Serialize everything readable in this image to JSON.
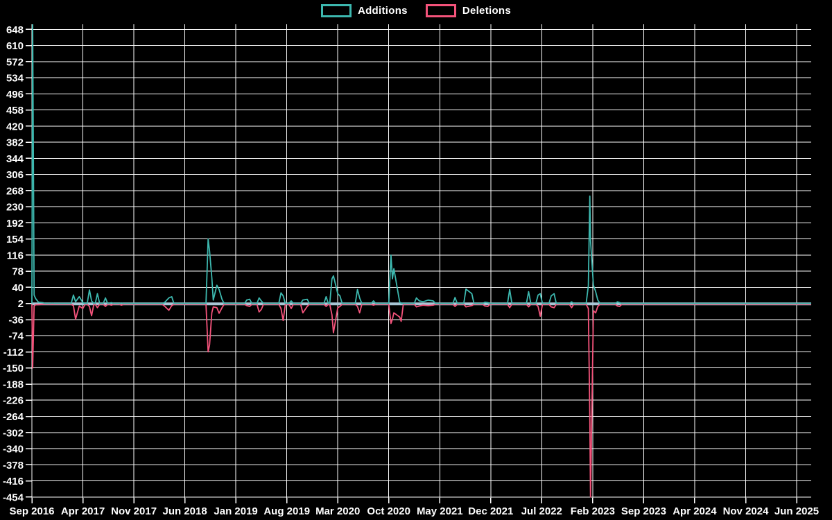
{
  "legend": {
    "items": [
      {
        "label": "Additions",
        "color": "#3db8af"
      },
      {
        "label": "Deletions",
        "color": "#f4537b"
      }
    ]
  },
  "chart_data": {
    "type": "line",
    "title": "",
    "xlabel": "",
    "ylabel": "",
    "background_color": "#000000",
    "grid_color": "#ffffff",
    "text_color": "#ffffff",
    "baseline_color": "#a8c6d5",
    "legend_position": "top-center",
    "grid": true,
    "series": [
      {
        "name": "Additions",
        "color": "#3db8af",
        "baseline": 2
      },
      {
        "name": "Deletions",
        "color": "#f4537b",
        "baseline": 0
      }
    ],
    "y_axis": {
      "ticks": [
        648,
        610,
        572,
        534,
        496,
        458,
        420,
        382,
        344,
        306,
        268,
        230,
        192,
        154,
        116,
        78,
        40,
        2,
        -36,
        -74,
        -112,
        -150,
        -188,
        -226,
        -264,
        -302,
        -340,
        -378,
        -416,
        -454
      ],
      "tick_step": 38,
      "max": 660,
      "min": -456
    },
    "x_axis": {
      "labels": [
        "Sep 2016",
        "Apr 2017",
        "Nov 2017",
        "Jun 2018",
        "Jan 2019",
        "Aug 2019",
        "Mar 2020",
        "Oct 2020",
        "May 2021",
        "Dec 2021",
        "Jul 2022",
        "Feb 2023",
        "Sep 2023",
        "Apr 2024",
        "Nov 2024",
        "Jun 2025"
      ],
      "months_per_label": 7,
      "total_months": 107
    },
    "points_note": "each point = [months since Sep 2016, additions, deletions]; series rest at baseline between points",
    "points": [
      [
        0.1,
        660,
        -150
      ],
      [
        0.3,
        22,
        -4
      ],
      [
        0.5,
        14,
        -1
      ],
      [
        0.9,
        5,
        -1
      ],
      [
        1.5,
        4,
        0
      ],
      [
        2.8,
        3,
        0
      ],
      [
        5.7,
        22,
        -3
      ],
      [
        6.0,
        6,
        -35
      ],
      [
        6.5,
        18,
        -4
      ],
      [
        7.0,
        4,
        -10
      ],
      [
        7.9,
        34,
        -5
      ],
      [
        8.2,
        8,
        -27
      ],
      [
        9.0,
        25,
        -8
      ],
      [
        10.1,
        15,
        -5
      ],
      [
        10.9,
        4,
        -2
      ],
      [
        12.3,
        3,
        -2
      ],
      [
        18.2,
        4,
        -4
      ],
      [
        18.8,
        15,
        -14
      ],
      [
        19.2,
        18,
        -3
      ],
      [
        24.2,
        154,
        -112
      ],
      [
        24.4,
        125,
        -95
      ],
      [
        24.7,
        63,
        -20
      ],
      [
        24.9,
        10,
        -6
      ],
      [
        25.4,
        45,
        -8
      ],
      [
        25.7,
        35,
        -21
      ],
      [
        26.1,
        12,
        -8
      ],
      [
        29.5,
        10,
        -3
      ],
      [
        29.9,
        12,
        -5
      ],
      [
        31.2,
        15,
        -18
      ],
      [
        31.5,
        8,
        -12
      ],
      [
        34.2,
        27,
        -10
      ],
      [
        34.5,
        20,
        -38
      ],
      [
        35.6,
        8,
        -10
      ],
      [
        37.2,
        10,
        -20
      ],
      [
        37.8,
        12,
        -5
      ],
      [
        40.4,
        18,
        -5
      ],
      [
        41.2,
        60,
        -25
      ],
      [
        41.4,
        67,
        -67
      ],
      [
        42.0,
        25,
        -8
      ],
      [
        42.3,
        20,
        -5
      ],
      [
        44.7,
        35,
        -5
      ],
      [
        45.0,
        15,
        -20
      ],
      [
        46.9,
        8,
        -2
      ],
      [
        49.3,
        116,
        -45
      ],
      [
        49.5,
        60,
        -35
      ],
      [
        49.7,
        84,
        -20
      ],
      [
        50.5,
        5,
        -30
      ],
      [
        50.7,
        3,
        -40
      ],
      [
        52.8,
        15,
        -6
      ],
      [
        53.2,
        8,
        -4
      ],
      [
        53.7,
        6,
        -2
      ],
      [
        54.4,
        10,
        -3
      ],
      [
        55.1,
        8,
        -2
      ],
      [
        58.1,
        16,
        -5
      ],
      [
        59.6,
        36,
        -6
      ],
      [
        60.4,
        25,
        -3
      ],
      [
        62.2,
        5,
        -4
      ],
      [
        62.6,
        4,
        -5
      ],
      [
        65.6,
        35,
        -8
      ],
      [
        68.2,
        30,
        -6
      ],
      [
        69.5,
        22,
        -5
      ],
      [
        69.8,
        25,
        -28
      ],
      [
        71.3,
        20,
        -6
      ],
      [
        71.7,
        25,
        -8
      ],
      [
        74.1,
        6,
        -8
      ],
      [
        76.4,
        44,
        -10
      ],
      [
        76.6,
        255,
        -264
      ],
      [
        76.7,
        150,
        -454
      ],
      [
        77.1,
        45,
        -15
      ],
      [
        77.4,
        30,
        -20
      ],
      [
        77.7,
        10,
        -5
      ],
      [
        80.4,
        6,
        -4
      ],
      [
        80.7,
        4,
        -5
      ]
    ]
  }
}
